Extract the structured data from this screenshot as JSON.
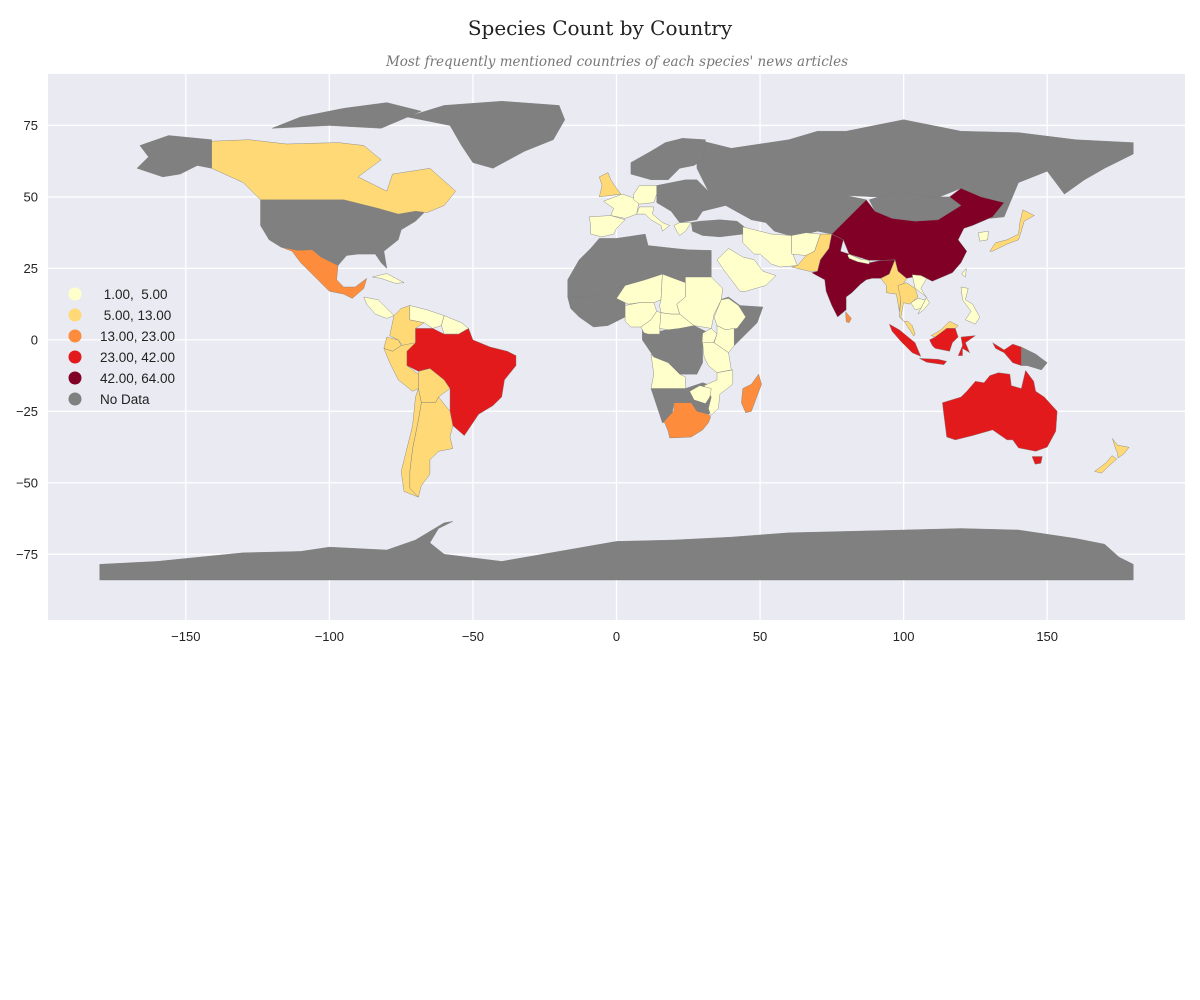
{
  "chart_data": {
    "type": "choropleth",
    "title": "Species Count by Country",
    "subtitle": "Most frequently mentioned countries of each species' news articles",
    "xlim": [
      -198,
      198
    ],
    "ylim": [
      -98,
      93
    ],
    "x_ticks": [
      -150,
      -100,
      -50,
      0,
      50,
      100,
      150
    ],
    "x_tick_labels": [
      "−150",
      "−100",
      "−50",
      "0",
      "50",
      "100",
      "150"
    ],
    "y_ticks": [
      75,
      50,
      25,
      0,
      -25,
      -50,
      -75
    ],
    "y_tick_labels": [
      "75",
      "50",
      "25",
      "0",
      "−25",
      "−50",
      "−75"
    ],
    "grid": true,
    "legend_placement": "center-left",
    "bins": [
      {
        "label": " 1.00,  5.00",
        "range": [
          1.0,
          5.0
        ],
        "color": "#ffffcc"
      },
      {
        "label": " 5.00, 13.00",
        "range": [
          5.0,
          13.0
        ],
        "color": "#fed976"
      },
      {
        "label": "13.00, 23.00",
        "range": [
          13.0,
          23.0
        ],
        "color": "#fd8d3c"
      },
      {
        "label": "23.00, 42.00",
        "range": [
          23.0,
          42.0
        ],
        "color": "#e31a1c"
      },
      {
        "label": "42.00, 64.00",
        "range": [
          42.0,
          64.0
        ],
        "color": "#800026"
      },
      {
        "label": "No Data",
        "range": null,
        "color": "#808080"
      }
    ],
    "countries": [
      {
        "name": "China",
        "bin": 4
      },
      {
        "name": "India",
        "bin": 4
      },
      {
        "name": "Brazil",
        "bin": 3
      },
      {
        "name": "Australia",
        "bin": 3
      },
      {
        "name": "Indonesia",
        "bin": 3
      },
      {
        "name": "Mexico",
        "bin": 2
      },
      {
        "name": "South Africa",
        "bin": 2
      },
      {
        "name": "Madagascar",
        "bin": 2
      },
      {
        "name": "Canada",
        "bin": 1
      },
      {
        "name": "Peru",
        "bin": 1
      },
      {
        "name": "Colombia",
        "bin": 1
      },
      {
        "name": "Ecuador",
        "bin": 1
      },
      {
        "name": "Bolivia",
        "bin": 1
      },
      {
        "name": "Argentina",
        "bin": 1
      },
      {
        "name": "Chile",
        "bin": 1
      },
      {
        "name": "Japan",
        "bin": 1
      },
      {
        "name": "Thailand",
        "bin": 1
      },
      {
        "name": "Myanmar",
        "bin": 1
      },
      {
        "name": "Pakistan",
        "bin": 1
      },
      {
        "name": "New Zealand",
        "bin": 1
      },
      {
        "name": "Malaysia",
        "bin": 1
      },
      {
        "name": "United Kingdom",
        "bin": 1
      },
      {
        "name": "Venezuela",
        "bin": 0
      },
      {
        "name": "Guyana",
        "bin": 0
      },
      {
        "name": "Spain",
        "bin": 0
      },
      {
        "name": "France",
        "bin": 0
      },
      {
        "name": "Italy",
        "bin": 0
      },
      {
        "name": "Saudi Arabia",
        "bin": 0
      },
      {
        "name": "Iran",
        "bin": 0
      },
      {
        "name": "Afghanistan",
        "bin": 0
      },
      {
        "name": "Niger",
        "bin": 0
      },
      {
        "name": "Chad",
        "bin": 0
      },
      {
        "name": "Nigeria",
        "bin": 0
      },
      {
        "name": "Cameroon",
        "bin": 0
      },
      {
        "name": "Sudan",
        "bin": 0
      },
      {
        "name": "Tanzania",
        "bin": 0
      },
      {
        "name": "Angola",
        "bin": 0
      },
      {
        "name": "Philippines",
        "bin": 0
      },
      {
        "name": "Cuba",
        "bin": 0
      },
      {
        "name": "Panama",
        "bin": 0
      },
      {
        "name": "Nepal",
        "bin": 0
      },
      {
        "name": "Zimbabwe",
        "bin": 0
      },
      {
        "name": "Vietnam",
        "bin": 0
      },
      {
        "name": "Cambodia",
        "bin": 0
      },
      {
        "name": "Sri Lanka",
        "bin": 2
      },
      {
        "name": "Taiwan",
        "bin": 0
      },
      {
        "name": "South Korea",
        "bin": 0
      },
      {
        "name": "Germany",
        "bin": 0
      },
      {
        "name": "Greece",
        "bin": 0
      },
      {
        "name": "Turkey",
        "bin": 0
      },
      {
        "name": "Uganda",
        "bin": 0
      },
      {
        "name": "Kenya",
        "bin": 0
      },
      {
        "name": "Mozambique",
        "bin": 0
      },
      {
        "name": "Ethiopia",
        "bin": 0
      },
      {
        "name": "Central African Republic",
        "bin": 0
      }
    ],
    "no_data_regions": [
      "United States",
      "Alaska",
      "Greenland",
      "Russia",
      "Central Asia",
      "Mongolia",
      "North Africa",
      "West Africa",
      "Congo Basin",
      "Horn of Africa",
      "Southern Africa",
      "Eastern Europe",
      "Scandinavia",
      "Arctic Canada islands",
      "Antarctica",
      "Papua New Guinea"
    ]
  }
}
